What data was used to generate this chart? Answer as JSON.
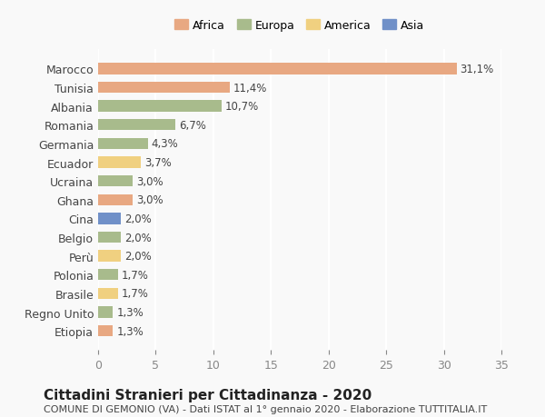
{
  "countries": [
    "Marocco",
    "Tunisia",
    "Albania",
    "Romania",
    "Germania",
    "Ecuador",
    "Ucraina",
    "Ghana",
    "Cina",
    "Belgio",
    "Perù",
    "Polonia",
    "Brasile",
    "Regno Unito",
    "Etiopia"
  ],
  "values": [
    31.1,
    11.4,
    10.7,
    6.7,
    4.3,
    3.7,
    3.0,
    3.0,
    2.0,
    2.0,
    2.0,
    1.7,
    1.7,
    1.3,
    1.3
  ],
  "labels": [
    "31,1%",
    "11,4%",
    "10,7%",
    "6,7%",
    "4,3%",
    "3,7%",
    "3,0%",
    "3,0%",
    "2,0%",
    "2,0%",
    "2,0%",
    "1,7%",
    "1,7%",
    "1,3%",
    "1,3%"
  ],
  "continents": [
    "Africa",
    "Africa",
    "Europa",
    "Europa",
    "Europa",
    "America",
    "Europa",
    "Africa",
    "Asia",
    "Europa",
    "America",
    "Europa",
    "America",
    "Europa",
    "Africa"
  ],
  "colors": {
    "Africa": "#E8A882",
    "Europa": "#A8BB8C",
    "America": "#F0D080",
    "Asia": "#7090C8"
  },
  "legend_colors": {
    "Africa": "#E8A882",
    "Europa": "#A8BB8C",
    "America": "#F0D080",
    "Asia": "#7090C8"
  },
  "title": "Cittadini Stranieri per Cittadinanza - 2020",
  "subtitle": "COMUNE DI GEMONIO (VA) - Dati ISTAT al 1° gennaio 2020 - Elaborazione TUTTITALIA.IT",
  "xlim": [
    0,
    35
  ],
  "xticks": [
    0,
    5,
    10,
    15,
    20,
    25,
    30,
    35
  ],
  "background_color": "#f9f9f9",
  "bar_height": 0.6,
  "grid_color": "#ffffff",
  "title_fontsize": 11,
  "subtitle_fontsize": 8,
  "tick_fontsize": 9,
  "label_fontsize": 8.5
}
